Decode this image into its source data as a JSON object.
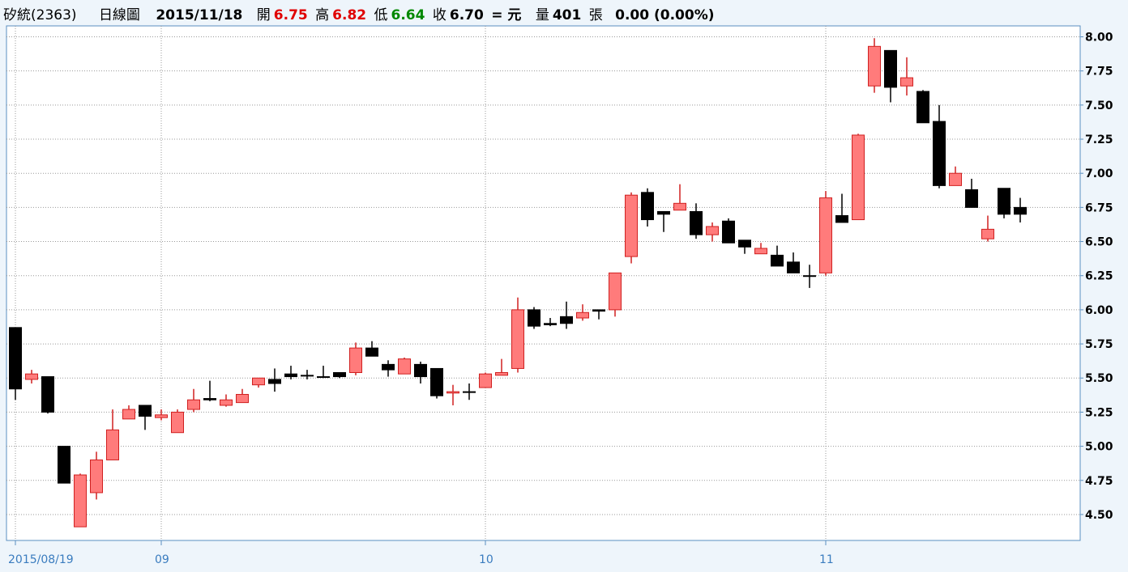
{
  "header": {
    "stock": "矽統(2363)",
    "chart_name": "日線圖",
    "date": "2015/11/18",
    "open_label": "開",
    "open": "6.75",
    "high_label": "高",
    "high": "6.82",
    "low_label": "低",
    "low": "6.64",
    "close_label": "收",
    "close": "6.70",
    "unit": "= 元",
    "volume_label": "量",
    "volume": "401",
    "volume_unit": "張",
    "change": "0.00 (0.00%)"
  },
  "chart_data": {
    "type": "candlestick",
    "categories": [
      "2015/08/19",
      null,
      null,
      null,
      null,
      null,
      null,
      null,
      null,
      "09",
      null,
      null,
      null,
      null,
      null,
      null,
      null,
      null,
      null,
      null,
      null,
      null,
      null,
      null,
      null,
      null,
      null,
      null,
      null,
      "10",
      null,
      null,
      null,
      null,
      null,
      null,
      null,
      null,
      null,
      null,
      null,
      null,
      null,
      null,
      null,
      null,
      null,
      null,
      null,
      null,
      "11",
      null,
      null,
      null,
      null,
      null,
      null,
      null,
      null,
      null,
      null,
      null,
      null
    ],
    "open": [
      5.87,
      5.49,
      5.51,
      5.0,
      4.41,
      4.66,
      4.9,
      5.2,
      5.3,
      5.21,
      5.1,
      5.27,
      5.35,
      5.3,
      5.32,
      5.45,
      5.49,
      5.53,
      5.52,
      5.51,
      5.54,
      5.54,
      5.72,
      5.6,
      5.53,
      5.6,
      5.57,
      5.39,
      5.4,
      5.43,
      5.52,
      5.57,
      6.0,
      5.9,
      5.95,
      5.94,
      6.0,
      6.0,
      6.39,
      6.86,
      6.72,
      6.73,
      6.72,
      6.55,
      6.65,
      6.51,
      6.41,
      6.4,
      6.35,
      6.25,
      6.27,
      6.69,
      6.66,
      7.64,
      7.9,
      7.64,
      7.6,
      7.38,
      6.91,
      6.88,
      6.52,
      6.89,
      6.75
    ],
    "high": [
      5.87,
      5.56,
      5.51,
      5.0,
      4.8,
      4.96,
      5.27,
      5.3,
      5.3,
      5.27,
      5.27,
      5.42,
      5.48,
      5.38,
      5.42,
      5.5,
      5.57,
      5.59,
      5.56,
      5.59,
      5.54,
      5.76,
      5.77,
      5.63,
      5.65,
      5.62,
      5.57,
      5.45,
      5.46,
      5.54,
      5.64,
      6.09,
      6.02,
      5.94,
      6.06,
      6.04,
      6.0,
      6.27,
      6.86,
      6.89,
      6.72,
      6.92,
      6.78,
      6.64,
      6.67,
      6.51,
      6.49,
      6.47,
      6.42,
      6.33,
      6.87,
      6.85,
      7.29,
      7.99,
      7.9,
      7.85,
      7.61,
      7.5,
      7.05,
      6.96,
      6.69,
      6.89,
      6.82
    ],
    "low": [
      5.34,
      5.46,
      5.24,
      4.73,
      4.41,
      4.61,
      4.9,
      5.2,
      5.12,
      5.19,
      5.1,
      5.25,
      5.33,
      5.29,
      5.32,
      5.43,
      5.4,
      5.49,
      5.49,
      5.5,
      5.5,
      5.52,
      5.66,
      5.51,
      5.53,
      5.46,
      5.35,
      5.3,
      5.34,
      5.43,
      5.52,
      5.54,
      5.86,
      5.88,
      5.86,
      5.92,
      5.93,
      5.95,
      6.34,
      6.61,
      6.57,
      6.73,
      6.52,
      6.5,
      6.49,
      6.41,
      6.41,
      6.32,
      6.27,
      6.16,
      6.25,
      6.64,
      6.66,
      7.59,
      7.52,
      7.57,
      7.37,
      6.89,
      6.91,
      6.75,
      6.5,
      6.67,
      6.64
    ],
    "close": [
      5.42,
      5.53,
      5.25,
      4.73,
      4.79,
      4.9,
      5.12,
      5.27,
      5.22,
      5.23,
      5.25,
      5.34,
      5.34,
      5.34,
      5.38,
      5.5,
      5.46,
      5.51,
      5.52,
      5.51,
      5.51,
      5.72,
      5.66,
      5.56,
      5.64,
      5.51,
      5.37,
      5.4,
      5.4,
      5.53,
      5.54,
      6.0,
      5.88,
      5.89,
      5.9,
      5.98,
      5.99,
      6.27,
      6.84,
      6.66,
      6.7,
      6.78,
      6.55,
      6.61,
      6.49,
      6.46,
      6.45,
      6.32,
      6.27,
      6.25,
      6.82,
      6.64,
      7.28,
      7.93,
      7.63,
      7.7,
      7.37,
      6.91,
      7.0,
      6.75,
      6.59,
      6.7,
      6.7
    ],
    "up_color": "#ff7b7b",
    "down_color": "#000000",
    "ylim": [
      4.31,
      8.08
    ],
    "yticks": [
      {
        "value": 4.5,
        "label": "4.50"
      },
      {
        "value": 4.75,
        "label": "4.75"
      },
      {
        "value": 5,
        "label": "5.00"
      },
      {
        "value": 5.25,
        "label": "5.25"
      },
      {
        "value": 5.5,
        "label": "5.50"
      },
      {
        "value": 5.75,
        "label": "5.75"
      },
      {
        "value": 6,
        "label": "6.00"
      },
      {
        "value": 6.25,
        "label": "6.25"
      },
      {
        "value": 6.5,
        "label": "6.50"
      },
      {
        "value": 6.75,
        "label": "6.75"
      },
      {
        "value": 7,
        "label": "7.00"
      },
      {
        "value": 7.25,
        "label": "7.25"
      },
      {
        "value": 7.5,
        "label": "7.50"
      },
      {
        "value": 7.75,
        "label": "7.75"
      },
      {
        "value": 8,
        "label": "8.00"
      }
    ],
    "grid": true
  }
}
